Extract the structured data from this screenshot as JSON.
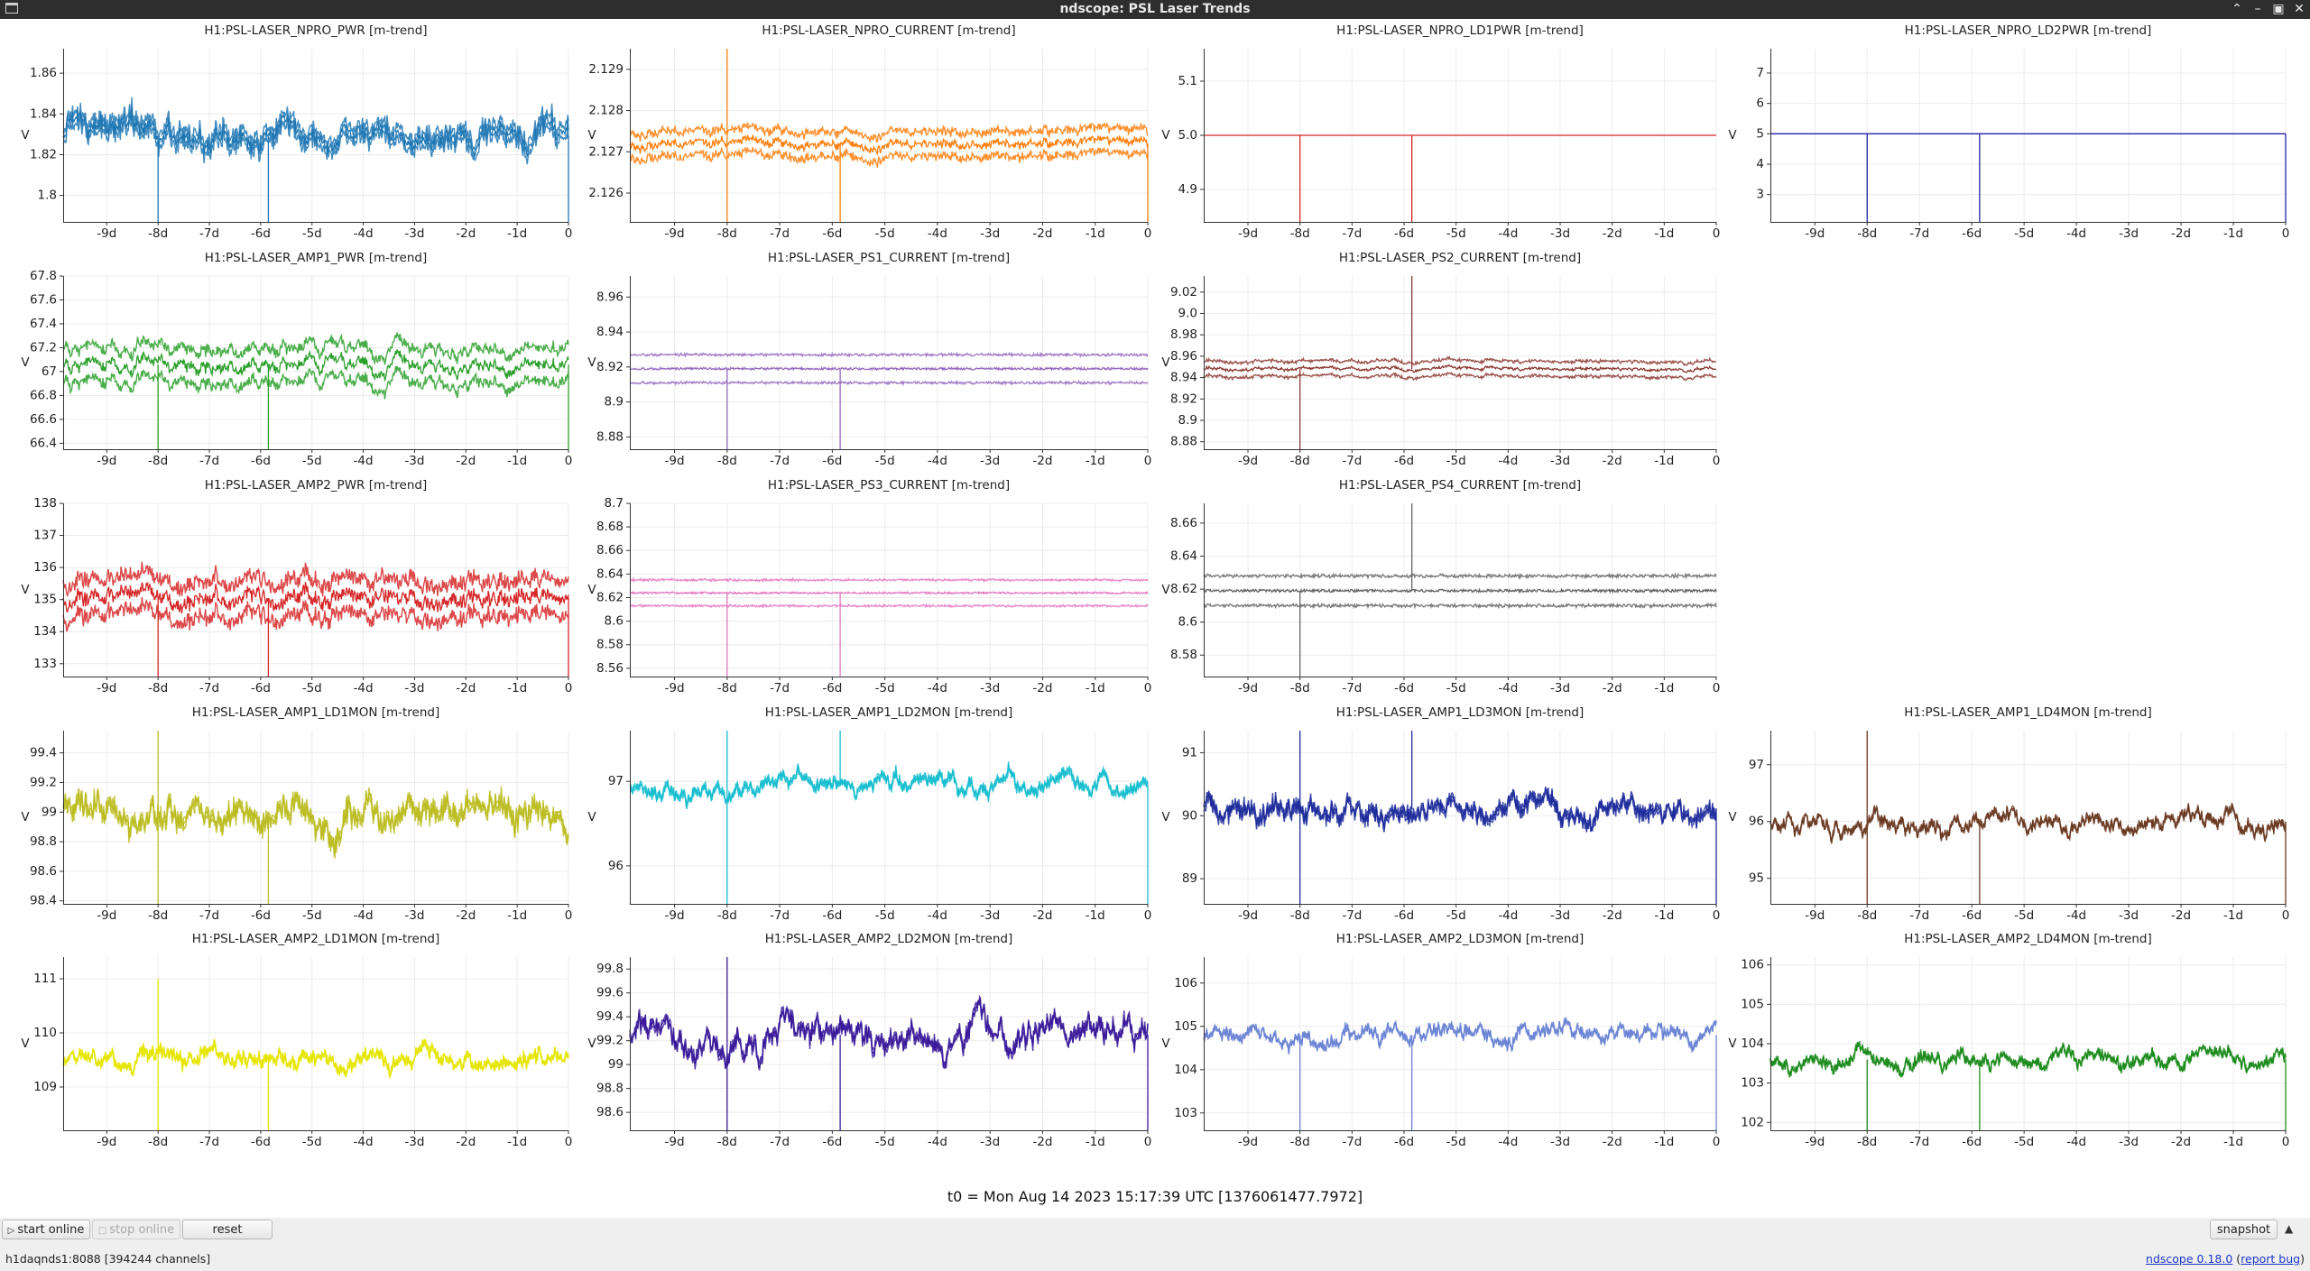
{
  "window": {
    "title": "ndscope: PSL Laser Trends"
  },
  "time_axis": {
    "tick_labels": [
      "-9d",
      "-8d",
      "-7d",
      "-6d",
      "-5d",
      "-4d",
      "-3d",
      "-2d",
      "-1d",
      "0"
    ],
    "tick_days": [
      -9,
      -8,
      -7,
      -6,
      -5,
      -4,
      -3,
      -2,
      -1,
      0
    ],
    "range_days": [
      -9.85,
      0
    ]
  },
  "plots": [
    {
      "row": 0,
      "col": 0,
      "title": "H1:PSL-LASER_NPRO_PWR [m-trend]",
      "color": "#1f77b4",
      "ylabel": "V",
      "ylim": [
        1.787,
        1.872
      ],
      "yticks": [
        "1.8",
        "1.82",
        "1.84",
        "1.86"
      ],
      "ytick_values": [
        1.8,
        1.82,
        1.84,
        1.86
      ],
      "center": 1.829,
      "wiggle": 0.004,
      "noise": 0.003,
      "band": 0.003,
      "spikes": [
        {
          "t": -8,
          "to": 1.787
        },
        {
          "t": -5.85,
          "to": 1.787
        },
        {
          "t": 0,
          "to": 1.787
        }
      ]
    },
    {
      "row": 0,
      "col": 1,
      "title": "H1:PSL-LASER_NPRO_CURRENT [m-trend]",
      "color": "#ff7f0e",
      "ylabel": "V",
      "ylim": [
        2.1253,
        2.1295
      ],
      "yticks": [
        "2.126",
        "2.127",
        "2.128",
        "2.129"
      ],
      "ytick_values": [
        2.126,
        2.127,
        2.128,
        2.129
      ],
      "center": 2.1272,
      "wiggle": 7e-05,
      "noise": 8e-05,
      "band": 0.0003,
      "spikes": [
        {
          "t": -8,
          "to": 2.1295
        },
        {
          "t": -8,
          "to": 2.1253
        },
        {
          "t": -5.85,
          "to": 2.1253
        },
        {
          "t": 0,
          "to": 2.1253
        }
      ]
    },
    {
      "row": 0,
      "col": 2,
      "title": "H1:PSL-LASER_NPRO_LD1PWR [m-trend]",
      "color": "#d62728",
      "ylabel": "V",
      "ylim": [
        4.84,
        5.16
      ],
      "yticks": [
        "4.9",
        "5.0",
        "5.1"
      ],
      "ytick_values": [
        4.9,
        5.0,
        5.1
      ],
      "center": 5.0,
      "wiggle": 0,
      "noise": 0,
      "band": 0,
      "spikes": [
        {
          "t": -8,
          "to": 4.84
        },
        {
          "t": -5.85,
          "to": 4.84
        }
      ]
    },
    {
      "row": 0,
      "col": 3,
      "title": "H1:PSL-LASER_NPRO_LD2PWR [m-trend]",
      "color": "#2222aa",
      "ylabel": "V",
      "ylim": [
        2.1,
        7.8
      ],
      "yticks": [
        "3",
        "4",
        "5",
        "6",
        "7"
      ],
      "ytick_values": [
        3,
        4,
        5,
        6,
        7
      ],
      "center": 5.0,
      "wiggle": 0,
      "noise": 0,
      "band": 0,
      "spikes": [
        {
          "t": -8,
          "to": 2.1
        },
        {
          "t": -5.85,
          "to": 2.1
        },
        {
          "t": 0,
          "to": 2.1
        }
      ]
    },
    {
      "row": 1,
      "col": 0,
      "title": "H1:PSL-LASER_AMP1_PWR [m-trend]",
      "color": "#2ca02c",
      "ylabel": "V",
      "ylim": [
        66.35,
        67.8
      ],
      "yticks": [
        "66.4",
        "66.6",
        "66.8",
        "67",
        "67.2",
        "67.4",
        "67.6",
        "67.8"
      ],
      "ytick_values": [
        66.4,
        66.6,
        66.8,
        67,
        67.2,
        67.4,
        67.6,
        67.8
      ],
      "center": 67.06,
      "wiggle": 0.05,
      "noise": 0.03,
      "band": 0.14,
      "spikes": [
        {
          "t": -8,
          "to": 66.35
        },
        {
          "t": -5.85,
          "to": 66.35
        },
        {
          "t": 0,
          "to": 66.35
        }
      ]
    },
    {
      "row": 1,
      "col": 1,
      "title": "H1:PSL-LASER_PS1_CURRENT [m-trend]",
      "color": "#9467bd",
      "ylabel": "V",
      "ylim": [
        8.873,
        8.972
      ],
      "yticks": [
        "8.88",
        "8.9",
        "8.92",
        "8.94",
        "8.96"
      ],
      "ytick_values": [
        8.88,
        8.9,
        8.92,
        8.94,
        8.96
      ],
      "center": 8.919,
      "wiggle": 0.0,
      "noise": 0.0006,
      "band": 0.008,
      "spikes": [
        {
          "t": -8,
          "to": 8.873
        },
        {
          "t": -5.85,
          "to": 8.873
        }
      ]
    },
    {
      "row": 1,
      "col": 2,
      "title": "H1:PSL-LASER_PS2_CURRENT [m-trend]",
      "color": "#8c3a32",
      "ylabel": "V",
      "ylim": [
        8.873,
        9.035
      ],
      "yticks": [
        "8.88",
        "8.9",
        "8.92",
        "8.94",
        "8.96",
        "8.98",
        "9.0",
        "9.02"
      ],
      "ytick_values": [
        8.88,
        8.9,
        8.92,
        8.94,
        8.96,
        8.98,
        9.0,
        9.02
      ],
      "center": 8.948,
      "wiggle": 0.001,
      "noise": 0.001,
      "band": 0.007,
      "spikes": [
        {
          "t": -8,
          "to": 8.873
        },
        {
          "t": -5.85,
          "to": 9.035
        }
      ]
    },
    {
      "row": 2,
      "col": 0,
      "title": "H1:PSL-LASER_AMP2_PWR [m-trend]",
      "color": "#d62728",
      "ylabel": "V",
      "ylim": [
        132.6,
        138.0
      ],
      "yticks": [
        "133",
        "134",
        "135",
        "136",
        "137",
        "138"
      ],
      "ytick_values": [
        133,
        134,
        135,
        136,
        137,
        138
      ],
      "center": 135.05,
      "wiggle": 0.15,
      "noise": 0.2,
      "band": 0.55,
      "spikes": [
        {
          "t": -8,
          "to": 132.6
        },
        {
          "t": -5.85,
          "to": 132.6
        },
        {
          "t": 0,
          "to": 132.6
        }
      ]
    },
    {
      "row": 2,
      "col": 1,
      "title": "H1:PSL-LASER_PS3_CURRENT [m-trend]",
      "color": "#e377c2",
      "ylabel": "V",
      "ylim": [
        8.553,
        8.7
      ],
      "yticks": [
        "8.56",
        "8.58",
        "8.6",
        "8.62",
        "8.64",
        "8.66",
        "8.68",
        "8.7"
      ],
      "ytick_values": [
        8.56,
        8.58,
        8.6,
        8.62,
        8.64,
        8.66,
        8.68,
        8.7
      ],
      "center": 8.624,
      "wiggle": 0.0,
      "noise": 0.0008,
      "band": 0.011,
      "spikes": [
        {
          "t": -8,
          "to": 8.553
        },
        {
          "t": -5.85,
          "to": 8.553
        }
      ]
    },
    {
      "row": 2,
      "col": 2,
      "title": "H1:PSL-LASER_PS4_CURRENT [m-trend]",
      "color": "#666666",
      "ylabel": "V",
      "ylim": [
        8.567,
        8.672
      ],
      "yticks": [
        "8.58",
        "8.6",
        "8.62",
        "8.64",
        "8.66"
      ],
      "ytick_values": [
        8.58,
        8.6,
        8.62,
        8.64,
        8.66
      ],
      "center": 8.619,
      "wiggle": 0.0,
      "noise": 0.0008,
      "band": 0.009,
      "spikes": [
        {
          "t": -8,
          "to": 8.567
        },
        {
          "t": -5.85,
          "to": 8.672
        }
      ]
    },
    {
      "row": 3,
      "col": 0,
      "title": "H1:PSL-LASER_AMP1_LD1MON [m-trend]",
      "color": "#bcbd22",
      "ylabel": "V",
      "ylim": [
        98.38,
        99.55
      ],
      "yticks": [
        "98.4",
        "98.6",
        "98.8",
        "99",
        "99.2",
        "99.4"
      ],
      "ytick_values": [
        98.4,
        98.6,
        98.8,
        99,
        99.2,
        99.4
      ],
      "center": 99.0,
      "wiggle": 0.08,
      "noise": 0.05,
      "band": 0.02,
      "spikes": [
        {
          "t": -8,
          "to": 98.38
        },
        {
          "t": -8,
          "to": 99.55
        },
        {
          "t": -5.85,
          "to": 98.38
        }
      ]
    },
    {
      "row": 3,
      "col": 1,
      "title": "H1:PSL-LASER_AMP1_LD2MON [m-trend]",
      "color": "#17becf",
      "ylabel": "V",
      "ylim": [
        95.55,
        97.6
      ],
      "yticks": [
        "96",
        "97"
      ],
      "ytick_values": [
        96,
        97
      ],
      "center": 96.95,
      "wiggle": 0.08,
      "noise": 0.04,
      "band": 0.02,
      "spikes": [
        {
          "t": -8,
          "to": 95.55
        },
        {
          "t": -8,
          "to": 97.6
        },
        {
          "t": -5.85,
          "to": 97.6
        },
        {
          "t": 0,
          "to": 95.55
        }
      ]
    },
    {
      "row": 3,
      "col": 2,
      "title": "H1:PSL-LASER_AMP1_LD3MON [m-trend]",
      "color": "#1f2d9c",
      "ylabel": "V",
      "ylim": [
        88.6,
        91.35
      ],
      "yticks": [
        "89",
        "90",
        "91"
      ],
      "ytick_values": [
        89,
        90,
        91
      ],
      "center": 90.1,
      "wiggle": 0.12,
      "noise": 0.09,
      "band": 0.04,
      "spikes": [
        {
          "t": -8,
          "to": 88.6
        },
        {
          "t": -8,
          "to": 91.35
        },
        {
          "t": -5.85,
          "to": 91.35
        },
        {
          "t": 0,
          "to": 88.6
        }
      ]
    },
    {
      "row": 3,
      "col": 3,
      "title": "H1:PSL-LASER_AMP1_LD4MON [m-trend]",
      "color": "#6b3a22",
      "ylabel": "V",
      "ylim": [
        94.55,
        97.6
      ],
      "yticks": [
        "95",
        "96",
        "97"
      ],
      "ytick_values": [
        95,
        96,
        97
      ],
      "center": 96.0,
      "wiggle": 0.15,
      "noise": 0.06,
      "band": 0.02,
      "spikes": [
        {
          "t": -8,
          "to": 94.55
        },
        {
          "t": -8,
          "to": 97.6
        },
        {
          "t": -5.85,
          "to": 94.55
        },
        {
          "t": 0,
          "to": 94.55
        }
      ]
    },
    {
      "row": 4,
      "col": 0,
      "title": "H1:PSL-LASER_AMP2_LD1MON [m-trend]",
      "color": "#e5e500",
      "ylabel": "V",
      "ylim": [
        108.2,
        111.4
      ],
      "yticks": [
        "109",
        "110",
        "111"
      ],
      "ytick_values": [
        109,
        110,
        111
      ],
      "center": 109.5,
      "wiggle": 0.12,
      "noise": 0.08,
      "band": 0.02,
      "spikes": [
        {
          "t": -8,
          "to": 108.2
        },
        {
          "t": -8,
          "to": 111.0
        },
        {
          "t": -5.85,
          "to": 108.2
        }
      ]
    },
    {
      "row": 4,
      "col": 1,
      "title": "H1:PSL-LASER_AMP2_LD2MON [m-trend]",
      "color": "#3a1a9a",
      "ylabel": "V",
      "ylim": [
        98.45,
        99.9
      ],
      "yticks": [
        "98.6",
        "98.8",
        "99",
        "99.2",
        "99.4",
        "99.6",
        "99.8"
      ],
      "ytick_values": [
        98.6,
        98.8,
        99,
        99.2,
        99.4,
        99.6,
        99.8
      ],
      "center": 99.25,
      "wiggle": 0.1,
      "noise": 0.05,
      "band": 0.02,
      "spikes": [
        {
          "t": -8,
          "to": 98.45
        },
        {
          "t": -8,
          "to": 99.9
        },
        {
          "t": -5.85,
          "to": 98.45
        },
        {
          "t": 0,
          "to": 98.45
        }
      ]
    },
    {
      "row": 4,
      "col": 2,
      "title": "H1:PSL-LASER_AMP2_LD3MON [m-trend]",
      "color": "#6b84d4",
      "ylabel": "V",
      "ylim": [
        102.6,
        106.6
      ],
      "yticks": [
        "103",
        "104",
        "105",
        "106"
      ],
      "ytick_values": [
        103,
        104,
        105,
        106
      ],
      "center": 104.8,
      "wiggle": 0.15,
      "noise": 0.09,
      "band": 0.02,
      "spikes": [
        {
          "t": -8,
          "to": 102.6
        },
        {
          "t": -5.85,
          "to": 102.6
        },
        {
          "t": 0,
          "to": 102.6
        }
      ]
    },
    {
      "row": 4,
      "col": 3,
      "title": "H1:PSL-LASER_AMP2_LD4MON [m-trend]",
      "color": "#1e8c1e",
      "ylabel": "V",
      "ylim": [
        101.8,
        106.2
      ],
      "yticks": [
        "102",
        "103",
        "104",
        "105",
        "106"
      ],
      "ytick_values": [
        102,
        103,
        104,
        105,
        106
      ],
      "center": 103.6,
      "wiggle": 0.15,
      "noise": 0.1,
      "band": 0.02,
      "spikes": [
        {
          "t": -8,
          "to": 101.8
        },
        {
          "t": -5.85,
          "to": 101.8
        },
        {
          "t": 0,
          "to": 101.8
        }
      ]
    }
  ],
  "t0": "t0 = Mon Aug 14 2023 15:17:39 UTC [1376061477.7972]",
  "controls": {
    "start_online": "start online",
    "stop_online": "stop online",
    "reset": "reset",
    "snapshot": "snapshot"
  },
  "status": {
    "server": "h1daqnds1:8088  [394244 channels]",
    "version": "ndscope 0.18.0",
    "report_bug": "report bug"
  }
}
